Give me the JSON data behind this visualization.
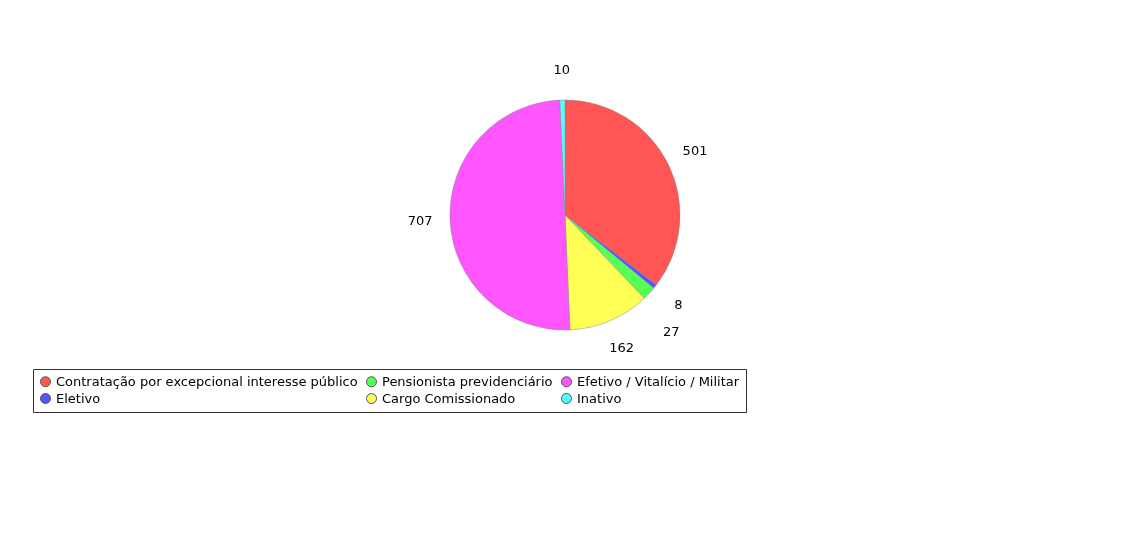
{
  "chart_data": {
    "type": "pie",
    "categories": [
      "Contratação por excepcional interesse público",
      "Eletivo",
      "Pensionista previdenciário",
      "Cargo Comissionado",
      "Efetivo / Vitalício / Militar",
      "Inativo"
    ],
    "values": [
      501,
      8,
      27,
      162,
      707,
      10
    ],
    "colors": [
      "#ff5555",
      "#5555ff",
      "#55ff55",
      "#ffff55",
      "#ff55ff",
      "#55ffff"
    ],
    "data_labels": true,
    "legend": "bottom"
  }
}
